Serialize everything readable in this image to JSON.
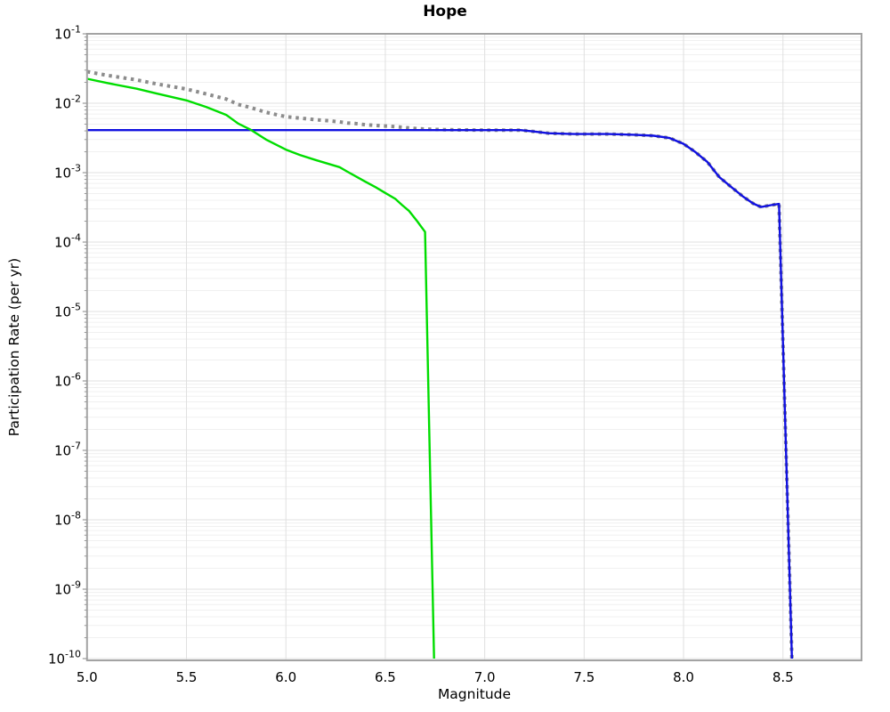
{
  "chart_data": {
    "type": "line",
    "title": "Hope",
    "xlabel": "Magnitude",
    "ylabel": "Participation Rate (per yr)",
    "x_axis": {
      "min": 5.0,
      "max": 8.895,
      "tick_values": [
        5.0,
        5.5,
        6.0,
        6.5,
        7.0,
        7.5,
        8.0,
        8.5
      ],
      "tick_labels": [
        "5.0",
        "5.5",
        "6.0",
        "6.5",
        "7.0",
        "7.5",
        "8.0",
        "8.5"
      ]
    },
    "y_axis": {
      "scale": "log",
      "min": 1e-10,
      "max": 0.1,
      "tick_base": "10",
      "tick_exponents": [
        -1,
        -2,
        -3,
        -4,
        -5,
        -6,
        -7,
        -8,
        -9,
        -10
      ],
      "minor_grid": true
    },
    "grid": true,
    "legend": "none",
    "series": [
      {
        "name": "gray-dotted-total",
        "style": "dotted",
        "color": "#8c8c8c",
        "width": 4,
        "points": [
          [
            5.0,
            0.0285
          ],
          [
            5.1,
            0.0253
          ],
          [
            5.25,
            0.0217
          ],
          [
            5.35,
            0.019
          ],
          [
            5.5,
            0.016
          ],
          [
            5.6,
            0.0136
          ],
          [
            5.7,
            0.0115
          ],
          [
            5.76,
            0.0096
          ],
          [
            5.82,
            0.0087
          ],
          [
            5.9,
            0.0074
          ],
          [
            6.0,
            0.0064
          ],
          [
            6.07,
            0.0061
          ],
          [
            6.15,
            0.0058
          ],
          [
            6.21,
            0.0056
          ],
          [
            6.27,
            0.0054
          ],
          [
            6.31,
            0.0052
          ],
          [
            6.35,
            0.0051
          ],
          [
            6.4,
            0.0049
          ],
          [
            6.45,
            0.0048
          ],
          [
            6.5,
            0.0047
          ],
          [
            6.55,
            0.0046
          ],
          [
            6.585,
            0.0045
          ],
          [
            6.62,
            0.0044
          ],
          [
            6.66,
            0.0043
          ],
          [
            6.7,
            0.00425
          ],
          [
            6.745,
            0.0042
          ],
          [
            6.8,
            0.00416
          ],
          [
            6.9,
            0.00412
          ],
          [
            7.0,
            0.0041
          ],
          [
            7.18,
            0.0041
          ],
          [
            7.24,
            0.00393
          ],
          [
            7.32,
            0.0037
          ],
          [
            7.45,
            0.0036
          ],
          [
            7.62,
            0.0036
          ],
          [
            7.75,
            0.00352
          ],
          [
            7.85,
            0.0034
          ],
          [
            7.93,
            0.00315
          ],
          [
            8.0,
            0.0026
          ],
          [
            8.06,
            0.00198
          ],
          [
            8.12,
            0.00142
          ],
          [
            8.18,
            0.00086
          ],
          [
            8.24,
            0.00062
          ],
          [
            8.3,
            0.00045
          ],
          [
            8.35,
            0.00036
          ],
          [
            8.39,
            0.00032
          ],
          [
            8.44,
            0.00034
          ],
          [
            8.48,
            0.000355
          ],
          [
            8.545,
            1e-10
          ]
        ]
      },
      {
        "name": "blue-solid-baseline",
        "style": "solid",
        "color": "#1010e0",
        "width": 2.4,
        "points": [
          [
            5.0,
            0.0041
          ],
          [
            5.5,
            0.0041
          ],
          [
            6.0,
            0.0041
          ],
          [
            6.5,
            0.0041
          ],
          [
            6.9,
            0.0041
          ],
          [
            7.18,
            0.0041
          ],
          [
            7.24,
            0.00393
          ],
          [
            7.32,
            0.0037
          ],
          [
            7.45,
            0.0036
          ],
          [
            7.62,
            0.0036
          ],
          [
            7.75,
            0.00352
          ],
          [
            7.85,
            0.0034
          ],
          [
            7.93,
            0.00315
          ],
          [
            8.0,
            0.0026
          ],
          [
            8.06,
            0.00198
          ],
          [
            8.12,
            0.00142
          ],
          [
            8.18,
            0.00086
          ],
          [
            8.24,
            0.00062
          ],
          [
            8.3,
            0.00045
          ],
          [
            8.35,
            0.00036
          ],
          [
            8.39,
            0.00032
          ],
          [
            8.44,
            0.00034
          ],
          [
            8.48,
            0.000355
          ],
          [
            8.545,
            1e-10
          ]
        ]
      },
      {
        "name": "green-solid",
        "style": "solid",
        "color": "#00dd00",
        "width": 2.4,
        "points": [
          [
            5.0,
            0.0225
          ],
          [
            5.1,
            0.0196
          ],
          [
            5.25,
            0.0162
          ],
          [
            5.35,
            0.0138
          ],
          [
            5.5,
            0.011
          ],
          [
            5.6,
            0.0088
          ],
          [
            5.7,
            0.0068
          ],
          [
            5.76,
            0.0051
          ],
          [
            5.82,
            0.0042
          ],
          [
            5.9,
            0.003
          ],
          [
            6.0,
            0.00215
          ],
          [
            6.07,
            0.0018
          ],
          [
            6.15,
            0.00152
          ],
          [
            6.21,
            0.00135
          ],
          [
            6.27,
            0.0012
          ],
          [
            6.31,
            0.00103
          ],
          [
            6.35,
            0.00089
          ],
          [
            6.4,
            0.00074
          ],
          [
            6.45,
            0.00062
          ],
          [
            6.5,
            0.00051
          ],
          [
            6.55,
            0.00042
          ],
          [
            6.585,
            0.00034
          ],
          [
            6.62,
            0.00028
          ],
          [
            6.66,
            0.0002
          ],
          [
            6.7,
            0.00014
          ],
          [
            6.745,
            1e-10
          ]
        ]
      }
    ],
    "colors": {
      "grid_major": "#e0e0e0",
      "grid_minor": "#f0f0f0",
      "axis_border": "#a3a3a3",
      "tick": "#999999",
      "text": "#000000"
    }
  }
}
